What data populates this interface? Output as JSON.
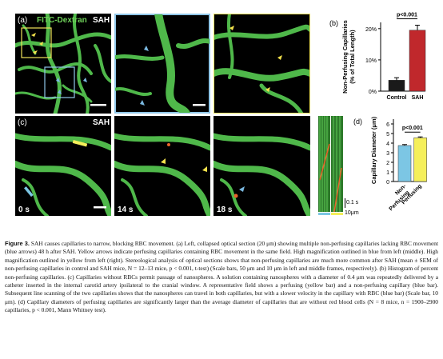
{
  "panel_a": {
    "label": "(a)",
    "title_dye": "FITC-Dextran",
    "title_sah": "SAH"
  },
  "panel_b": {
    "label": "(b)"
  },
  "panel_c": {
    "label": "(c)",
    "title_sah": "SAH",
    "times": [
      "0 s",
      "14 s",
      "18 s"
    ],
    "kymo_time_scale": "0.1 s",
    "kymo_space_scale": "10μm"
  },
  "panel_d": {
    "label": "(d)"
  },
  "colors": {
    "vessel_green": "#4fb84a",
    "blue_outline": "#8fc6e8",
    "yellow_outline": "#f0e25a",
    "blue_arrow": "#7ab8e0",
    "yellow_arrow": "#f2e14c",
    "bar_dark": "#1a1a1a",
    "bar_red": "#c0282c",
    "bar_lightblue": "#7cc6e4",
    "bar_yellow": "#f5ef5a"
  },
  "chart_data": [
    {
      "type": "bar",
      "panel": "b",
      "categories": [
        "Control",
        "SAH"
      ],
      "values": [
        3.5,
        19.5
      ],
      "errors": [
        0.8,
        1.6
      ],
      "ylabel": "Non-Perfusing Capillaries\n(% of Total Length)",
      "ylim": [
        0,
        22
      ],
      "yticks": [
        "0%",
        "10%",
        "20%"
      ],
      "annotation": "p<0.001"
    },
    {
      "type": "bar",
      "panel": "d",
      "categories": [
        "Non-Perfusing",
        "Perfusing"
      ],
      "values": [
        3.75,
        4.55
      ],
      "errors": [
        0.1,
        0.1
      ],
      "ylabel": "Capillary Diameter (μm)",
      "ylim": [
        0,
        6.5
      ],
      "yticks": [
        "0",
        "1",
        "2",
        "3",
        "4",
        "5",
        "6"
      ],
      "annotation": "p<0.001"
    }
  ],
  "caption": {
    "figure_label": "Figure 3.",
    "text": "SAH causes capillaries to narrow, blocking RBC movement. (a) Left, collapsed optical section (20 μm) showing multiple non-perfusing capillaries lacking RBC movement (blue arrows) 48 h after SAH. Yellow arrows indicate perfusing capillaries containing RBC movement in the same field. High magnification outlined in blue from left (middle). High magnification outlined in yellow from left (right). Stereological analysis of optical sections shows that non-perfusing capillaries are much more common after SAH (mean ± SEM of non-perfusing capillaries in control and SAH mice, N = 12–13 mice, p < 0.001, t-test) (Scale bars, 50 μm and 10 μm in left and middle frames, respectively). (b) Histogram of percent non-perfusing capillaries. (c) Capillaries without RBCs permit passage of nanospheres. A solution containing nanospheres with a diameter of 0.4 μm was repeatedly delivered by a catheter inserted in the internal carotid artery ipsilateral to the cranial window. A representative field shows a perfusing (yellow bar) and a non-perfusing capillary (blue bar). Subsequent line scanning of the two capillaries shows that the nanospheres can travel in both capillaries, but with a slower velocity in the capillary with RBC (blue bar) (Scale bar, 10 μm). (d) Capillary diameters of perfusing capillaries are significantly larger than the average diameter of capillaries that are without red blood cells (N = 8 mice, n = 1900–2900 capillaries, p < 0.001, Mann Whitney test)."
  }
}
